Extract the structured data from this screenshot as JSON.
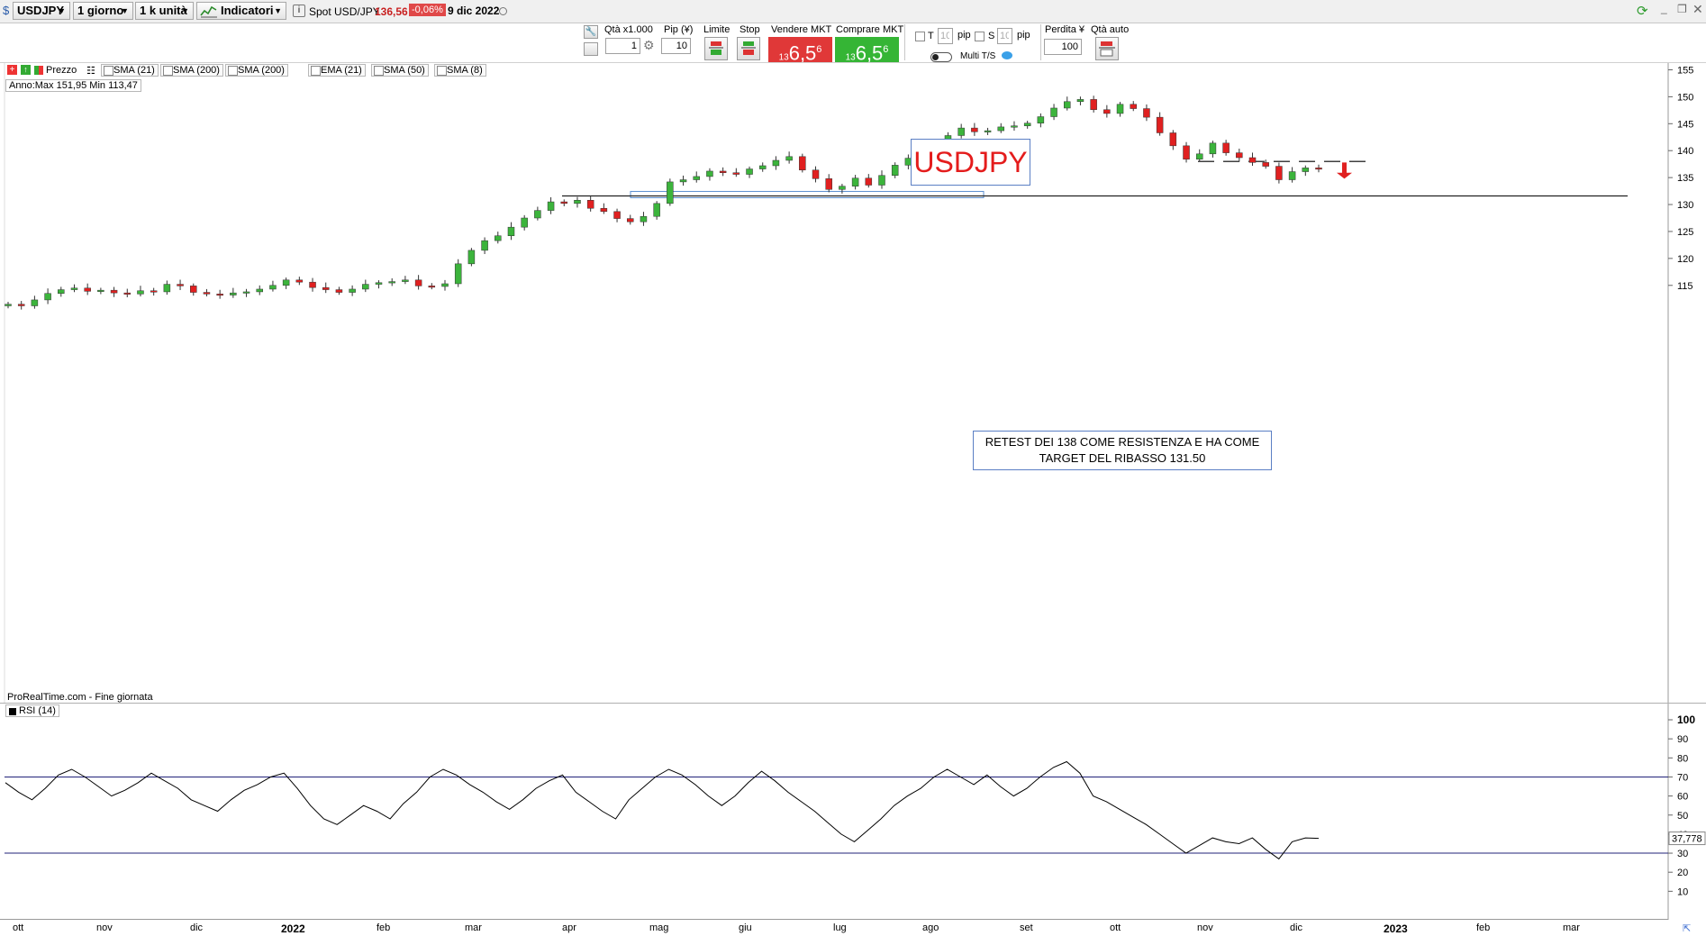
{
  "topbar": {
    "symbol": "USDJPY",
    "timeframe": "1 giorno",
    "units": "1 k unità",
    "indicators_label": "Indicatori",
    "info_icon": "info-icon",
    "instrument": "Spot USD/JPY",
    "price": "136,56",
    "change": "-0,06%",
    "date": "9 dic 2022"
  },
  "toolbar": {
    "qty_label": "Qtà x1.000",
    "qty_value": "1",
    "pip_label": "Pip (¥)",
    "pip_value": "10",
    "limit_label": "Limite",
    "stop_label": "Stop",
    "sell_label": "Vendere MKT",
    "buy_label": "Comprare MKT",
    "sell_price_small": "13",
    "sell_price_big": "6,5",
    "sell_price_sup": "6",
    "buy_price_small": "13",
    "buy_price_big": "6,5",
    "buy_price_sup": "6",
    "t_label": "T",
    "s_label": "S",
    "t_value": "10",
    "s_value": "10",
    "pip_unit": "pip",
    "multi_ts_label": "Multi T/S",
    "loss_label": "Perdita ¥",
    "loss_value": "100",
    "auto_qty_label": "Qtà auto",
    "colors": {
      "sell": "#e03838",
      "buy": "#35b535"
    }
  },
  "indicators": {
    "price_label": "Prezzo",
    "items": [
      "SMA (21)",
      "SMA (200)",
      "SMA (200)",
      "EMA (21)",
      "SMA (50)",
      "SMA (8)"
    ],
    "year_range": "Anno:Max 151,95 Min 113,47",
    "source": "ProRealTime.com - Fine giornata",
    "rsi_label": "RSI (14)"
  },
  "annotations": {
    "title": "USDJPY",
    "note": "RETEST DEI 138 COME RESISTENZA E HA COME TARGET DEL RIBASSO 131.50"
  },
  "chart_data": [
    {
      "type": "candlestick",
      "title": "USDJPY",
      "x_labels": [
        "ott",
        "nov",
        "dic",
        "2022",
        "feb",
        "mar",
        "apr",
        "mag",
        "giu",
        "lug",
        "ago",
        "set",
        "ott",
        "nov",
        "dic",
        "2023",
        "feb",
        "mar"
      ],
      "y_ticks": [
        115,
        120,
        125,
        130,
        135,
        140,
        145,
        150,
        155
      ],
      "ylim": [
        109.5,
        155.5
      ],
      "colors": {
        "up": "#3cb43c",
        "down": "#e02020"
      },
      "support_level": 131.6,
      "resistance_level": 138,
      "close_series": [
        111.5,
        111.2,
        112.3,
        113.5,
        114.2,
        114.5,
        113.9,
        114.1,
        113.6,
        113.4,
        114.0,
        113.8,
        115.2,
        114.9,
        113.7,
        113.4,
        113.2,
        113.6,
        113.8,
        114.3,
        115.0,
        116.0,
        115.6,
        114.6,
        114.2,
        113.7,
        114.3,
        115.2,
        115.5,
        115.7,
        116.0,
        114.9,
        114.8,
        115.3,
        119.0,
        121.5,
        123.3,
        124.2,
        125.8,
        127.5,
        128.9,
        130.5,
        130.2,
        130.8,
        129.3,
        128.7,
        127.4,
        126.8,
        127.8,
        130.2,
        134.2,
        134.6,
        135.2,
        136.2,
        135.9,
        135.6,
        136.6,
        137.2,
        138.2,
        138.9,
        136.4,
        134.8,
        132.8,
        133.4,
        134.9,
        133.6,
        135.4,
        137.3,
        138.6,
        139.4,
        140.9,
        142.8,
        144.2,
        143.5,
        143.7,
        144.4,
        144.6,
        145.1,
        146.3,
        147.9,
        149.1,
        149.5,
        147.6,
        146.9,
        148.6,
        147.8,
        146.2,
        143.3,
        140.9,
        138.4,
        139.4,
        141.4,
        139.6,
        138.7,
        137.8,
        137.1,
        134.6,
        136.1,
        136.8,
        136.6
      ]
    },
    {
      "type": "line",
      "title": "RSI (14)",
      "y_ticks": [
        10,
        20,
        30,
        40,
        50,
        60,
        70,
        80,
        90,
        100
      ],
      "ylim": [
        0,
        100
      ],
      "levels": [
        70,
        30
      ],
      "last_value": "37,778",
      "values": [
        67,
        62,
        58,
        64,
        71,
        74,
        70,
        65,
        60,
        63,
        67,
        72,
        68,
        64,
        58,
        55,
        52,
        58,
        63,
        66,
        70,
        72,
        64,
        55,
        48,
        45,
        50,
        55,
        52,
        48,
        56,
        62,
        70,
        74,
        71,
        66,
        62,
        57,
        53,
        58,
        64,
        68,
        71,
        62,
        57,
        52,
        48,
        58,
        64,
        70,
        74,
        71,
        66,
        60,
        55,
        60,
        67,
        73,
        68,
        62,
        57,
        52,
        46,
        40,
        36,
        42,
        48,
        55,
        60,
        64,
        70,
        74,
        70,
        66,
        71,
        65,
        60,
        64,
        70,
        75,
        78,
        72,
        60,
        57,
        53,
        49,
        45,
        40,
        35,
        30,
        34,
        38,
        36,
        35,
        38,
        32,
        27,
        36,
        38,
        37.8
      ]
    }
  ]
}
